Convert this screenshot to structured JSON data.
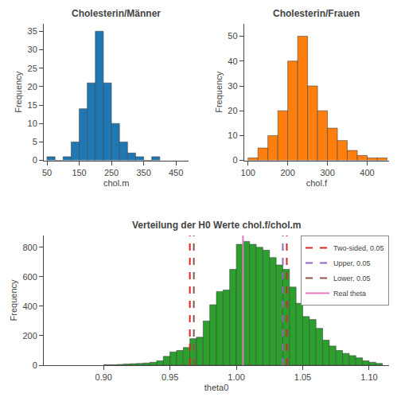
{
  "chart_data": [
    {
      "type": "histogram",
      "title": "Cholesterin/Männer",
      "xlabel": "chol.m",
      "ylabel": "Frequency",
      "bins": [
        50,
        75,
        100,
        125,
        150,
        175,
        200,
        225,
        250,
        275,
        300,
        325,
        350,
        375,
        400
      ],
      "values": [
        1,
        0,
        1,
        5,
        14,
        21,
        35,
        21,
        10,
        5,
        2,
        1,
        0,
        1
      ],
      "xlim": [
        40,
        490
      ],
      "xticks": [
        50,
        150,
        250,
        350,
        450
      ],
      "ylim": [
        0,
        37
      ],
      "yticks": [
        0,
        5,
        10,
        15,
        20,
        25,
        30,
        35
      ],
      "grid": false
    },
    {
      "type": "histogram",
      "title": "Cholesterin/Frauen",
      "xlabel": "chol.f",
      "ylabel": "Frequency",
      "bins": [
        100,
        125,
        150,
        175,
        200,
        225,
        250,
        275,
        300,
        325,
        350,
        375,
        400,
        425,
        450
      ],
      "values": [
        1,
        5,
        10,
        20,
        40,
        50,
        30,
        20,
        13,
        8,
        4,
        2,
        1,
        1
      ],
      "xlim": [
        90,
        455
      ],
      "xticks": [
        100,
        200,
        300,
        400
      ],
      "ylim": [
        0,
        55
      ],
      "yticks": [
        0,
        10,
        20,
        30,
        40,
        50
      ],
      "grid": false
    },
    {
      "type": "histogram",
      "title": "Verteilung der H0 Werte chol.f/chol.m",
      "xlabel": "theta0",
      "ylabel": "Frequency",
      "bins": [
        0.9,
        0.905,
        0.91,
        0.915,
        0.92,
        0.925,
        0.93,
        0.935,
        0.94,
        0.945,
        0.95,
        0.955,
        0.96,
        0.965,
        0.97,
        0.975,
        0.98,
        0.985,
        0.99,
        0.995,
        1.0,
        1.005,
        1.01,
        1.015,
        1.02,
        1.025,
        1.03,
        1.035,
        1.04,
        1.045,
        1.05,
        1.055,
        1.06,
        1.065,
        1.07,
        1.075,
        1.08,
        1.085,
        1.09,
        1.095,
        1.1,
        1.105,
        1.11
      ],
      "values": [
        3,
        3,
        5,
        8,
        10,
        12,
        15,
        20,
        30,
        60,
        90,
        100,
        120,
        180,
        190,
        300,
        410,
        500,
        510,
        650,
        820,
        840,
        820,
        800,
        780,
        730,
        680,
        650,
        530,
        420,
        330,
        310,
        250,
        170,
        130,
        100,
        80,
        65,
        50,
        30,
        20,
        12
      ],
      "xlim": [
        0.855,
        1.115
      ],
      "xticks": [
        {
          "value": 0.9,
          "label": "0.90"
        },
        0.95,
        {
          "value": 1.0,
          "label": "1.00"
        },
        1.05,
        {
          "value": 1.1,
          "label": "1.10"
        }
      ],
      "ylim": [
        0,
        880
      ],
      "yticks": [
        0,
        200,
        400,
        600,
        800
      ],
      "grid": false,
      "legend": "upper right",
      "series": [
        {
          "name": "Two-sided, 0.05",
          "type": "vline",
          "x": [
            0.965,
            1.038
          ],
          "line_style": "dashed"
        },
        {
          "name": "Upper, 0.05",
          "type": "vline",
          "x": [
            1.035
          ],
          "line_style": "dashed"
        },
        {
          "name": "Lower, 0.05",
          "type": "vline",
          "x": [
            0.968
          ],
          "line_style": "dashed"
        },
        {
          "name": "Real theta",
          "type": "vline",
          "x": [
            1.005
          ],
          "line_style": "solid"
        }
      ]
    }
  ]
}
